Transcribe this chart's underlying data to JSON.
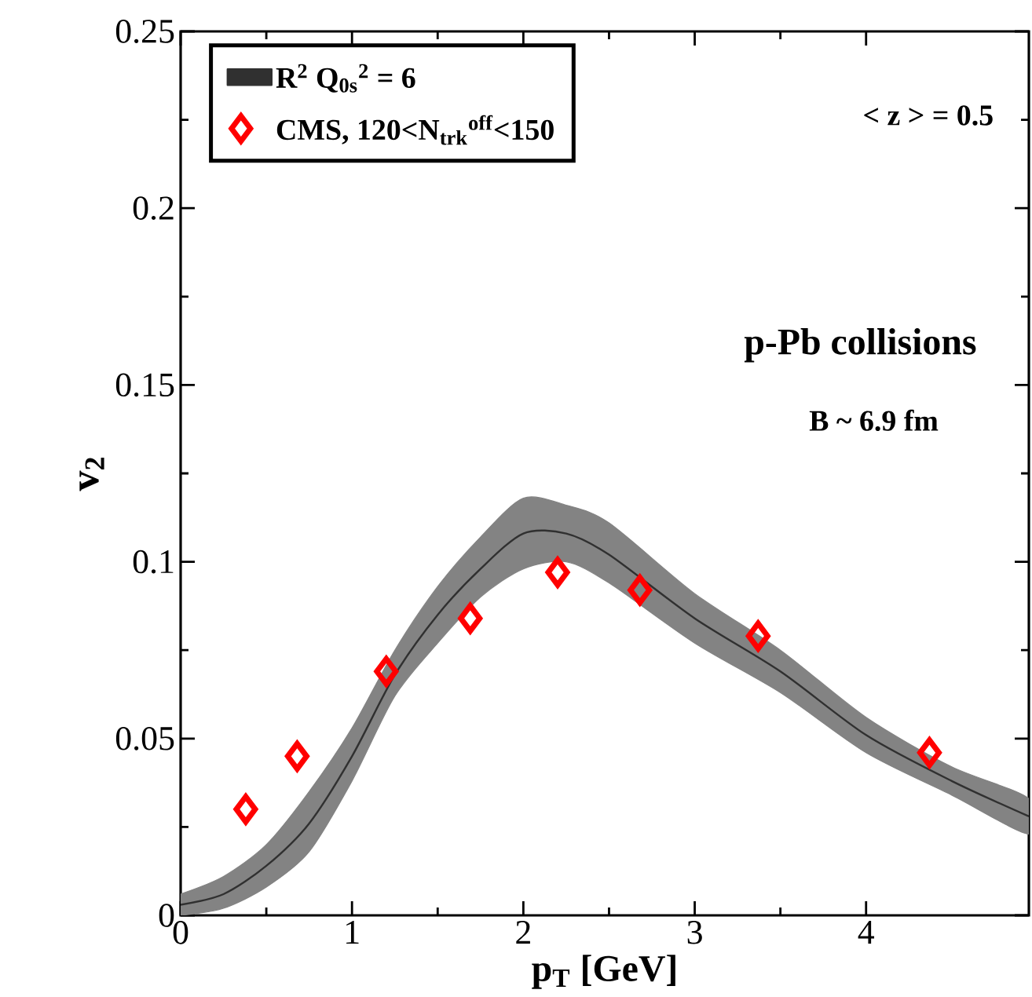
{
  "chart_data": {
    "type": "line",
    "xlabel": "p$_{T}$ [GeV]",
    "ylabel": "v$_{2}$",
    "xlim": [
      0,
      4.95
    ],
    "ylim": [
      0,
      0.25
    ],
    "xticks": [
      0,
      1,
      2,
      3,
      4
    ],
    "yticks": [
      0,
      0.05,
      0.1,
      0.15,
      0.2,
      0.25
    ],
    "legend": "top left",
    "grid": false,
    "annotations": [
      "< z > = 0.5",
      "p-Pb collisions",
      "B ~ 6.9 fm"
    ],
    "series": [
      {
        "name": "R$^{2}$ Q$_{0s}$$^{2}$ = 6",
        "color": "#303030",
        "x": [
          0,
          0.25,
          0.5,
          0.75,
          1,
          1.25,
          1.5,
          1.75,
          2,
          2.25,
          2.5,
          3,
          3.5,
          4,
          4.5,
          4.95
        ],
        "values": [
          0.003,
          0.006,
          0.014,
          0.026,
          0.045,
          0.068,
          0.085,
          0.098,
          0.108,
          0.108,
          0.102,
          0.084,
          0.069,
          0.051,
          0.038,
          0.028
        ],
        "lower": [
          0,
          0.002,
          0.008,
          0.018,
          0.038,
          0.062,
          0.077,
          0.09,
          0.098,
          0.1,
          0.094,
          0.077,
          0.063,
          0.046,
          0.034,
          0.023
        ],
        "upper": [
          0.006,
          0.011,
          0.02,
          0.035,
          0.053,
          0.075,
          0.093,
          0.107,
          0.118,
          0.116,
          0.111,
          0.091,
          0.075,
          0.056,
          0.042,
          0.033
        ]
      },
      {
        "name": "CMS, 120<N$_{trk}$$^{off}$<150",
        "type": "scatter",
        "color": "#ff0000",
        "marker": "diamond",
        "x": [
          0.38,
          0.68,
          1.2,
          1.69,
          2.2,
          2.68,
          3.37,
          4.37
        ],
        "values": [
          0.03,
          0.045,
          0.069,
          0.084,
          0.097,
          0.092,
          0.079,
          0.046
        ]
      }
    ]
  }
}
